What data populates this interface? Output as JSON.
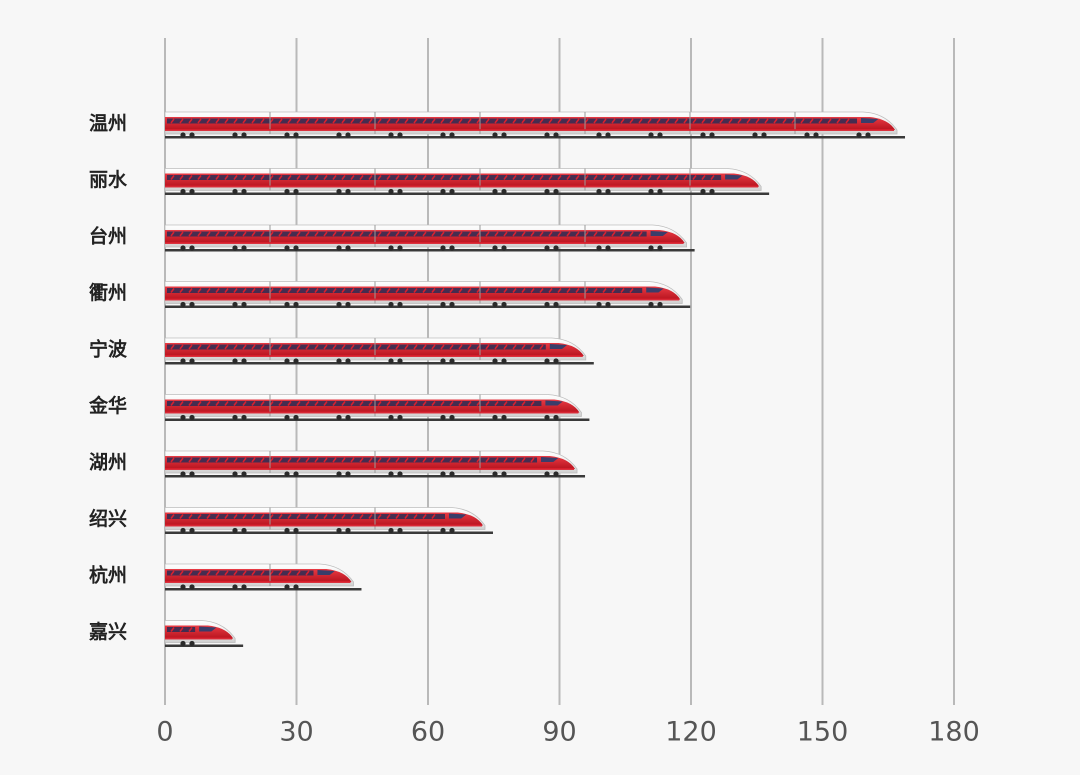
{
  "chart_data": {
    "type": "bar",
    "orientation": "horizontal",
    "bar_style": "high-speed-train pictograph",
    "title": "",
    "xlabel": "",
    "ylabel": "",
    "categories": [
      "温州",
      "丽水",
      "台州",
      "衢州",
      "宁波",
      "金华",
      "湖州",
      "绍兴",
      "杭州",
      "嘉兴"
    ],
    "values": [
      167,
      136,
      119,
      118,
      96,
      95,
      94,
      73,
      43,
      16
    ],
    "xlim": [
      0,
      180
    ],
    "xticks": [
      "0",
      "30",
      "60",
      "90",
      "120",
      "150",
      "180"
    ],
    "grid": "vertical",
    "legend": "none",
    "colors": {
      "background": "#f7f7f7",
      "grid": "#b9b9b9",
      "train_red": "#d9202e",
      "train_body": "#eeeeee",
      "window": "#2b2d55",
      "rail": "#3a3a3a"
    }
  }
}
